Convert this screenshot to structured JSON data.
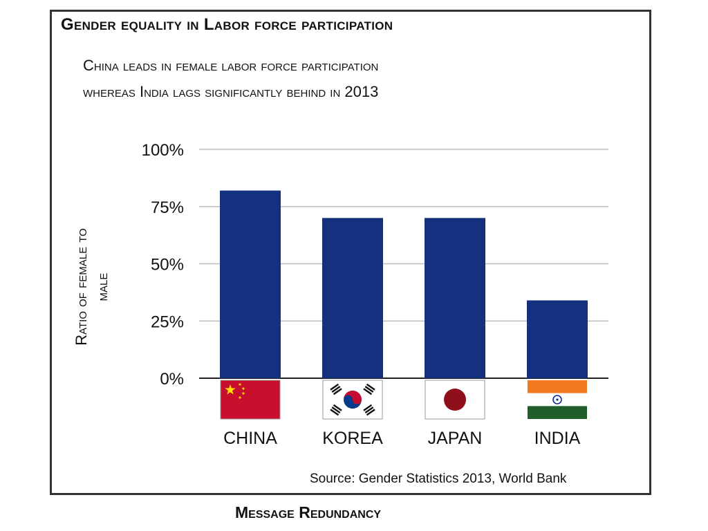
{
  "title": "Gender equality in Labor force participation",
  "subtitle_line1": "China leads in female labor force participation",
  "subtitle_line2": "whereas India lags significantly behind in 2013",
  "source": "Source: Gender Statistics 2013, World Bank",
  "footer": "Message Redundancy",
  "colors": {
    "bar": "#13317f",
    "grid": "#bdbdbd",
    "axis": "#222222"
  },
  "chart_data": {
    "type": "bar",
    "title": "Gender equality in Labor force participation",
    "ylabel_line1": "Ratio of female to",
    "ylabel_line2": "male",
    "xlabel": "",
    "categories": [
      "CHINA",
      "KOREA",
      "JAPAN",
      "INDIA"
    ],
    "values": [
      0.82,
      0.7,
      0.7,
      0.34
    ],
    "ylim": [
      0,
      1
    ],
    "yticks": [
      {
        "value": 0,
        "label": "0%"
      },
      {
        "value": 0.25,
        "label": "25%"
      },
      {
        "value": 0.5,
        "label": "50%"
      },
      {
        "value": 0.75,
        "label": "75%"
      },
      {
        "value": 1,
        "label": "100%"
      }
    ],
    "grid": true,
    "flag_icons": [
      "china-flag-icon",
      "korea-flag-icon",
      "japan-flag-icon",
      "india-flag-icon"
    ]
  }
}
